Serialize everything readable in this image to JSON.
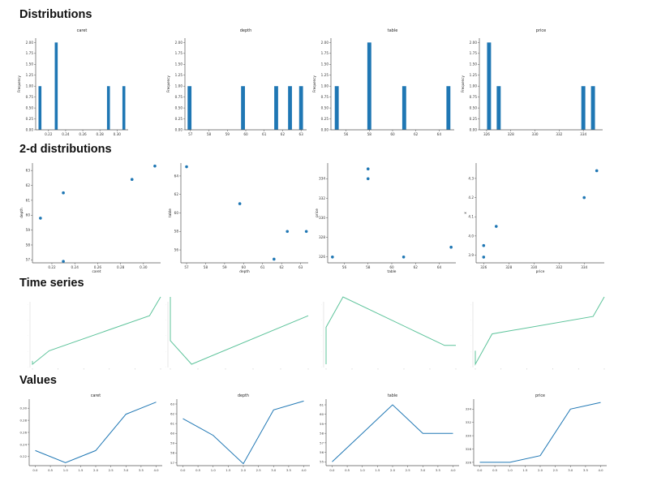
{
  "sections": {
    "distributions": "Distributions",
    "two_d": "2-d distributions",
    "time_series": "Time series",
    "values": "Values"
  },
  "colors": {
    "hist": "#1f77b4",
    "scatter": "#1f77b4",
    "timeseries": "#5cc39a",
    "values_line": "#1f77b4"
  },
  "chart_data": [
    {
      "group": "Distributions",
      "type": "bar",
      "title": "caret",
      "xlabel": "",
      "ylabel": "Frequency",
      "x_ticks": [
        "0.22",
        "0.24",
        "0.26",
        "0.28",
        "0.30"
      ],
      "xlim": [
        0.205,
        0.313
      ],
      "y_ticks": [
        "0.00",
        "0.25",
        "0.50",
        "0.75",
        "1.00",
        "1.25",
        "1.50",
        "1.75",
        "2.00"
      ],
      "ylim": [
        0,
        2.1
      ],
      "bins": [
        {
          "x": 0.21,
          "value": 1
        },
        {
          "x": 0.229,
          "value": 2
        },
        {
          "x": 0.29,
          "value": 1
        },
        {
          "x": 0.308,
          "value": 1
        }
      ],
      "bin_width": 0.0034
    },
    {
      "group": "Distributions",
      "type": "bar",
      "title": "depth",
      "xlabel": "",
      "ylabel": "Frequency",
      "x_ticks": [
        "57",
        "58",
        "59",
        "60",
        "61",
        "62",
        "63"
      ],
      "xlim": [
        56.7,
        63.3
      ],
      "y_ticks": [
        "0.00",
        "0.25",
        "0.50",
        "0.75",
        "1.00",
        "1.25",
        "1.50",
        "1.75",
        "2.00"
      ],
      "ylim": [
        0,
        2.1
      ],
      "bins": [
        {
          "x": 56.95,
          "value": 1
        },
        {
          "x": 59.85,
          "value": 1
        },
        {
          "x": 61.65,
          "value": 1
        },
        {
          "x": 62.4,
          "value": 1
        },
        {
          "x": 63.0,
          "value": 1
        }
      ],
      "bin_width": 0.21
    },
    {
      "group": "Distributions",
      "type": "bar",
      "title": "table",
      "xlabel": "",
      "ylabel": "Frequency",
      "x_ticks": [
        "56",
        "58",
        "60",
        "62",
        "64"
      ],
      "xlim": [
        54.7,
        65.3
      ],
      "y_ticks": [
        "0.00",
        "0.25",
        "0.50",
        "0.75",
        "1.00",
        "1.25",
        "1.50",
        "1.75",
        "2.00"
      ],
      "ylim": [
        0,
        2.1
      ],
      "bins": [
        {
          "x": 55.2,
          "value": 1
        },
        {
          "x": 58.0,
          "value": 2
        },
        {
          "x": 61.0,
          "value": 1
        },
        {
          "x": 64.8,
          "value": 1
        }
      ],
      "bin_width": 0.34
    },
    {
      "group": "Distributions",
      "type": "bar",
      "title": "price",
      "xlabel": "",
      "ylabel": "Frequency",
      "x_ticks": [
        "326",
        "328",
        "330",
        "332",
        "334"
      ],
      "xlim": [
        325.4,
        335.6
      ],
      "y_ticks": [
        "0.00",
        "0.25",
        "0.50",
        "0.75",
        "1.00",
        "1.25",
        "1.50",
        "1.75",
        "2.00"
      ],
      "ylim": [
        0,
        2.1
      ],
      "bins": [
        {
          "x": 326.2,
          "value": 2
        },
        {
          "x": 327.0,
          "value": 1
        },
        {
          "x": 334.0,
          "value": 1
        },
        {
          "x": 334.8,
          "value": 1
        }
      ],
      "bin_width": 0.33
    },
    {
      "group": "2-d distributions",
      "type": "scatter",
      "title": "",
      "xlabel": "caret",
      "ylabel": "depth",
      "x_ticks": [
        "0.22",
        "0.24",
        "0.26",
        "0.28",
        "0.30"
      ],
      "xlim": [
        0.203,
        0.315
      ],
      "y_ticks": [
        "57",
        "58",
        "59",
        "60",
        "61",
        "62",
        "63"
      ],
      "ylim": [
        56.8,
        63.5
      ],
      "points": [
        [
          0.21,
          59.8
        ],
        [
          0.23,
          61.5
        ],
        [
          0.23,
          56.9
        ],
        [
          0.29,
          62.4
        ],
        [
          0.31,
          63.3
        ]
      ]
    },
    {
      "group": "2-d distributions",
      "type": "scatter",
      "title": "",
      "xlabel": "depth",
      "ylabel": "table",
      "x_ticks": [
        "57",
        "58",
        "59",
        "60",
        "61",
        "62",
        "63"
      ],
      "xlim": [
        56.7,
        63.4
      ],
      "y_ticks": [
        "56",
        "58",
        "60",
        "62",
        "64"
      ],
      "ylim": [
        54.6,
        65.4
      ],
      "points": [
        [
          57.0,
          65.0
        ],
        [
          59.8,
          61.0
        ],
        [
          61.6,
          55.0
        ],
        [
          62.3,
          58.0
        ],
        [
          63.3,
          58.0
        ]
      ]
    },
    {
      "group": "2-d distributions",
      "type": "scatter",
      "title": "",
      "xlabel": "table",
      "ylabel": "price",
      "x_ticks": [
        "56",
        "58",
        "60",
        "62",
        "64"
      ],
      "xlim": [
        54.6,
        65.4
      ],
      "y_ticks": [
        "326",
        "328",
        "330",
        "332",
        "334"
      ],
      "ylim": [
        325.4,
        335.6
      ],
      "points": [
        [
          55.0,
          326.0
        ],
        [
          58.0,
          335.0
        ],
        [
          58.0,
          334.0
        ],
        [
          61.0,
          326.0
        ],
        [
          65.0,
          327.0
        ]
      ]
    },
    {
      "group": "2-d distributions",
      "type": "scatter",
      "title": "",
      "xlabel": "price",
      "ylabel": "x",
      "x_ticks": [
        "326",
        "328",
        "330",
        "332",
        "334"
      ],
      "xlim": [
        325.4,
        335.6
      ],
      "y_ticks": [
        "3.9",
        "4.0",
        "4.1",
        "4.2",
        "4.3"
      ],
      "ylim": [
        3.86,
        4.38
      ],
      "points": [
        [
          326.0,
          3.95
        ],
        [
          326.0,
          3.89
        ],
        [
          327.0,
          4.05
        ],
        [
          334.0,
          4.2
        ],
        [
          335.0,
          4.34
        ]
      ]
    },
    {
      "group": "Time series",
      "type": "line",
      "title": "",
      "xlabel": "",
      "ylabel": "",
      "x": [
        0.0,
        0.0,
        0.6,
        4.2,
        4.6
      ],
      "y": [
        0.05,
        0.0,
        0.2,
        0.72,
        1.0
      ],
      "xlim": [
        0,
        4.6
      ],
      "ylim": [
        0,
        1
      ]
    },
    {
      "group": "Time series",
      "type": "line",
      "title": "",
      "xlabel": "",
      "ylabel": "",
      "x": [
        0.0,
        0.0,
        0.6,
        3.9
      ],
      "y": [
        1.0,
        0.35,
        0.0,
        0.72
      ],
      "xlim": [
        0,
        3.9
      ],
      "ylim": [
        0,
        1
      ]
    },
    {
      "group": "Time series",
      "type": "line",
      "title": "",
      "xlabel": "",
      "ylabel": "",
      "x": [
        0.0,
        0.0,
        0.6,
        4.2,
        4.6
      ],
      "y": [
        0.0,
        0.55,
        1.0,
        0.28,
        0.28
      ],
      "xlim": [
        0,
        4.6
      ],
      "ylim": [
        0,
        1
      ]
    },
    {
      "group": "Time series",
      "type": "line",
      "title": "",
      "xlabel": "",
      "ylabel": "",
      "x": [
        0.0,
        0.0,
        0.6,
        4.2,
        4.6
      ],
      "y": [
        0.2,
        0.0,
        0.45,
        0.71,
        1.0
      ],
      "xlim": [
        0,
        4.6
      ],
      "ylim": [
        0,
        1
      ]
    },
    {
      "group": "Values",
      "type": "line",
      "title": "caret",
      "xlabel": "",
      "ylabel": "",
      "x_ticks": [
        "0.0",
        "0.5",
        "1.0",
        "1.5",
        "2.0",
        "2.5",
        "3.0",
        "3.5",
        "4.0"
      ],
      "xlim": [
        -0.2,
        4.2
      ],
      "y_ticks": [
        "0.22",
        "0.24",
        "0.26",
        "0.28",
        "0.30"
      ],
      "ylim": [
        0.205,
        0.315
      ],
      "x": [
        0,
        1,
        2,
        3,
        4
      ],
      "y": [
        0.23,
        0.21,
        0.23,
        0.29,
        0.31
      ]
    },
    {
      "group": "Values",
      "type": "line",
      "title": "depth",
      "xlabel": "",
      "ylabel": "",
      "x_ticks": [
        "0.0",
        "0.5",
        "1.0",
        "1.5",
        "2.0",
        "2.5",
        "3.0",
        "3.5",
        "4.0"
      ],
      "xlim": [
        -0.2,
        4.2
      ],
      "y_ticks": [
        "57",
        "58",
        "59",
        "60",
        "61",
        "62",
        "63"
      ],
      "ylim": [
        56.7,
        63.5
      ],
      "x": [
        0,
        1,
        2,
        3,
        4
      ],
      "y": [
        61.5,
        59.8,
        56.9,
        62.4,
        63.3
      ]
    },
    {
      "group": "Values",
      "type": "line",
      "title": "table",
      "xlabel": "",
      "ylabel": "",
      "x_ticks": [
        "0.0",
        "0.5",
        "1.0",
        "1.5",
        "2.0",
        "2.5",
        "3.0",
        "3.5",
        "4.0"
      ],
      "xlim": [
        -0.2,
        4.2
      ],
      "y_ticks": [
        "55",
        "56",
        "57",
        "58",
        "59",
        "60",
        "61"
      ],
      "ylim": [
        54.6,
        61.6
      ],
      "x": [
        0,
        1,
        2,
        3,
        4
      ],
      "y": [
        55,
        58,
        61,
        58,
        58
      ]
    },
    {
      "group": "Values",
      "type": "line",
      "title": "price",
      "xlabel": "",
      "ylabel": "",
      "x_ticks": [
        "0.0",
        "0.5",
        "1.0",
        "1.5",
        "2.0",
        "2.5",
        "3.0",
        "3.5",
        "4.0"
      ],
      "xlim": [
        -0.2,
        4.2
      ],
      "y_ticks": [
        "326",
        "328",
        "330",
        "332",
        "334"
      ],
      "ylim": [
        325.5,
        335.5
      ],
      "x": [
        0,
        1,
        2,
        3,
        4
      ],
      "y": [
        326,
        326,
        327,
        334,
        335
      ]
    }
  ]
}
